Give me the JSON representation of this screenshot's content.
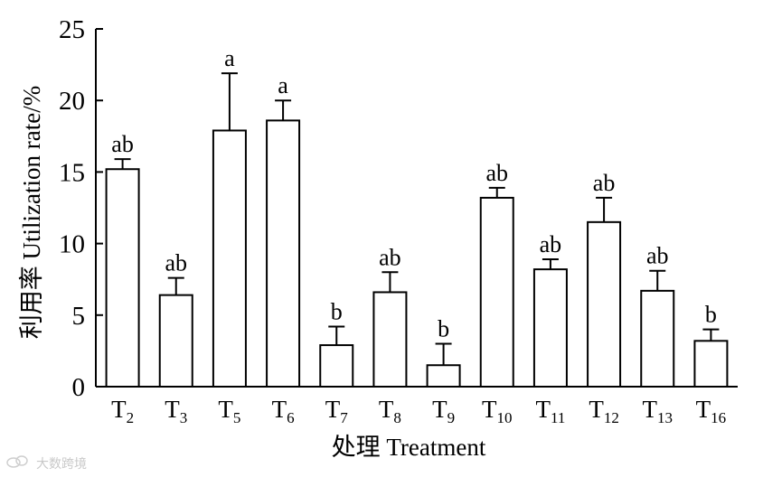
{
  "chart_data": {
    "type": "bar",
    "categories": [
      {
        "base": "T",
        "sub": "2"
      },
      {
        "base": "T",
        "sub": "3"
      },
      {
        "base": "T",
        "sub": "5"
      },
      {
        "base": "T",
        "sub": "6"
      },
      {
        "base": "T",
        "sub": "7"
      },
      {
        "base": "T",
        "sub": "8"
      },
      {
        "base": "T",
        "sub": "9"
      },
      {
        "base": "T",
        "sub": "10"
      },
      {
        "base": "T",
        "sub": "11"
      },
      {
        "base": "T",
        "sub": "12"
      },
      {
        "base": "T",
        "sub": "13"
      },
      {
        "base": "T",
        "sub": "16"
      }
    ],
    "values": [
      15.2,
      6.4,
      17.9,
      18.6,
      2.9,
      6.6,
      1.5,
      13.2,
      8.2,
      11.5,
      6.7,
      3.2
    ],
    "errors": [
      0.7,
      1.2,
      4.0,
      1.4,
      1.3,
      1.4,
      1.5,
      0.7,
      0.7,
      1.7,
      1.4,
      0.8
    ],
    "significance": [
      "ab",
      "ab",
      "a",
      "a",
      "b",
      "ab",
      "b",
      "ab",
      "ab",
      "ab",
      "ab",
      "b"
    ],
    "xlabel": "处理 Treatment",
    "ylabel": "利用率 Utilization rate/%",
    "ylim": [
      0,
      25
    ],
    "yticks": [
      0,
      5,
      10,
      15,
      20,
      25
    ]
  },
  "watermark": "大数跨境",
  "watermark_icon": "cloud-logo-icon"
}
